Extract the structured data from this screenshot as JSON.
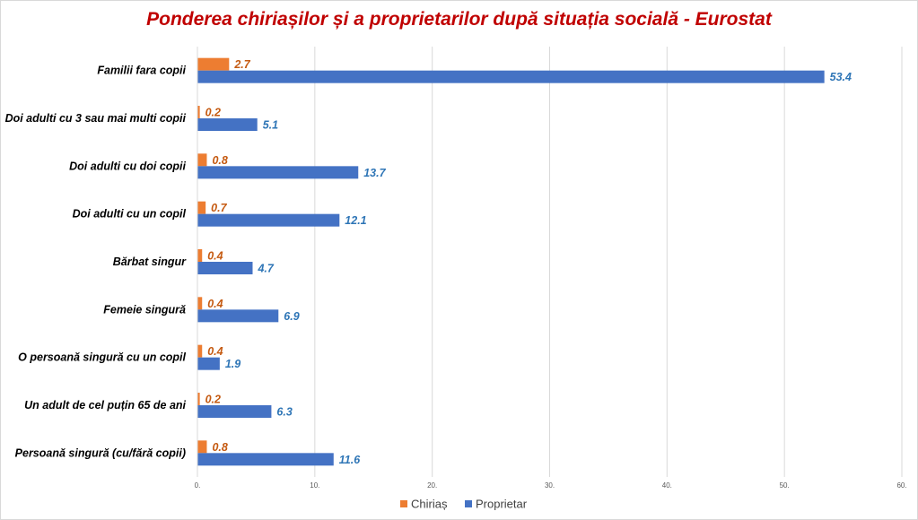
{
  "chart_data": {
    "type": "bar",
    "orientation": "horizontal",
    "title": "Ponderea chiriașilor și a proprietarilor după situația socială - Eurostat",
    "categories": [
      "Familii fara copii",
      "Doi adulti cu 3 sau mai multi copii",
      "Doi adulti cu doi copii",
      "Doi adulti cu un copil",
      "Bărbat singur",
      "Femeie singură",
      "O persoană singură cu un copil",
      "Un adult de cel puțin 65 de ani",
      "Persoană singură (cu/fără copii)"
    ],
    "series": [
      {
        "name": "Chiriaș",
        "color": "#ed7d31",
        "label_color": "#c55a11",
        "values": [
          2.7,
          0.2,
          0.8,
          0.7,
          0.4,
          0.4,
          0.4,
          0.2,
          0.8
        ]
      },
      {
        "name": "Proprietar",
        "color": "#4472c4",
        "label_color": "#2e75b6",
        "values": [
          53.4,
          5.1,
          13.7,
          12.1,
          4.7,
          6.9,
          1.9,
          6.3,
          11.6
        ]
      }
    ],
    "value_labels": [
      [
        "2.7",
        "0.2",
        "0.8",
        "0.7",
        "0.4",
        "0.4",
        "0.4",
        "0.2",
        "0.8"
      ],
      [
        "53.4",
        "5.1",
        "13.7",
        "12.1",
        "4.7",
        "6.9",
        "1.9",
        "6.3",
        "11.6"
      ]
    ],
    "xlim": [
      0,
      60
    ],
    "xticks": [
      0,
      10,
      20,
      30,
      40,
      50,
      60
    ],
    "xtick_labels": [
      "0.",
      "10.",
      "20.",
      "30.",
      "40.",
      "50.",
      "60."
    ],
    "grid": true,
    "legend_position": "bottom",
    "xlabel": "",
    "ylabel": ""
  }
}
